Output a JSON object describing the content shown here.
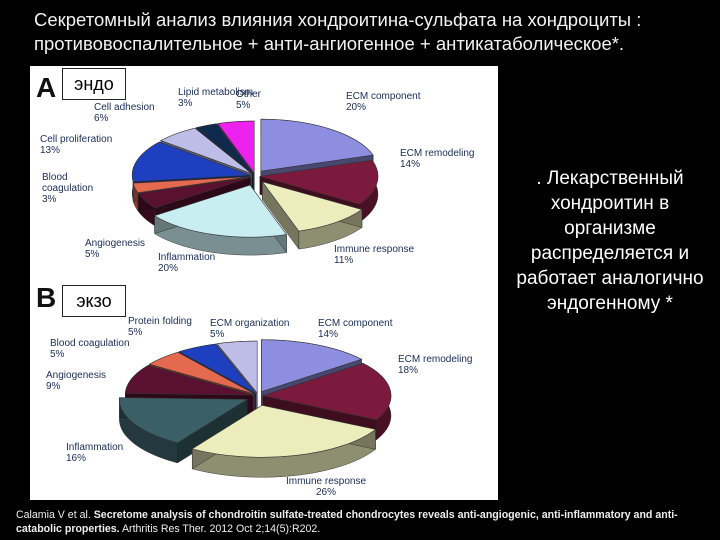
{
  "slide": {
    "title": "Секретомный анализ влияния хондроитина-сульфата на хондроциты : противовоспалительное + анти-ангиогенное + антикатаболическое*.",
    "side_text": ". Лекарственный хондроитин в организме распределяется и работает аналогично эндогенному *",
    "citation": {
      "authors": "Calamia V et al.",
      "article_title": "Secretome analysis of chondroitin sulfate-treated chondrocytes reveals anti-angiogenic, anti-inflammatory and anti-catabolic properties.",
      "journal": "Arthritis Res Ther. 2012 Oct 2;14(5):R202."
    }
  },
  "panels": {
    "a": {
      "letter": "A",
      "tag": "эндо"
    },
    "b": {
      "letter": "B",
      "tag": "экзо"
    }
  },
  "chart_data": [
    {
      "type": "pie",
      "panel": "A",
      "title": "",
      "style": "3d-exploded",
      "slices": [
        {
          "name": "ECM component",
          "value": 20,
          "pct_label": "20%",
          "color": "#8e8ee0"
        },
        {
          "name": "ECM remodeling",
          "value": 14,
          "pct_label": "14%",
          "color": "#7b1a3c"
        },
        {
          "name": "Immune response",
          "value": 11,
          "pct_label": "11%",
          "color": "#ececbc"
        },
        {
          "name": "Inflammation",
          "value": 20,
          "pct_label": "20%",
          "color": "#c9eef2"
        },
        {
          "name": "Angiogenesis",
          "value": 5,
          "pct_label": "5%",
          "color": "#5a1030"
        },
        {
          "name": "Blood coagulation",
          "value": 3,
          "pct_label": "3%",
          "color": "#e5694e"
        },
        {
          "name": "Cell proliferation",
          "value": 13,
          "pct_label": "13%",
          "color": "#1e3fbf"
        },
        {
          "name": "Cell adhesion",
          "value": 6,
          "pct_label": "6%",
          "color": "#bdbde8"
        },
        {
          "name": "Lipid metabolism",
          "value": 3,
          "pct_label": "3%",
          "color": "#102a4e"
        },
        {
          "name": "Other",
          "value": 5,
          "pct_label": "5%",
          "color": "#ee22ee"
        }
      ]
    },
    {
      "type": "pie",
      "panel": "B",
      "title": "",
      "style": "3d-exploded",
      "slices": [
        {
          "name": "ECM component",
          "value": 14,
          "pct_label": "14%",
          "color": "#8e8ee0"
        },
        {
          "name": "ECM remodeling",
          "value": 18,
          "pct_label": "18%",
          "color": "#7b1a3c"
        },
        {
          "name": "Immune response",
          "value": 26,
          "pct_label": "26%",
          "color": "#ececbc"
        },
        {
          "name": "Inflammation",
          "value": 16,
          "pct_label": "16%",
          "color": "#3a5f66"
        },
        {
          "name": "Angiogenesis",
          "value": 9,
          "pct_label": "9%",
          "color": "#5a1030"
        },
        {
          "name": "Blood coagulation",
          "value": 5,
          "pct_label": "5%",
          "color": "#e5694e"
        },
        {
          "name": "Protein folding",
          "value": 5,
          "pct_label": "5%",
          "color": "#1e3fbf"
        },
        {
          "name": "ECM organization",
          "value": 5,
          "pct_label": "5%",
          "color": "#bdbde8"
        }
      ]
    }
  ]
}
